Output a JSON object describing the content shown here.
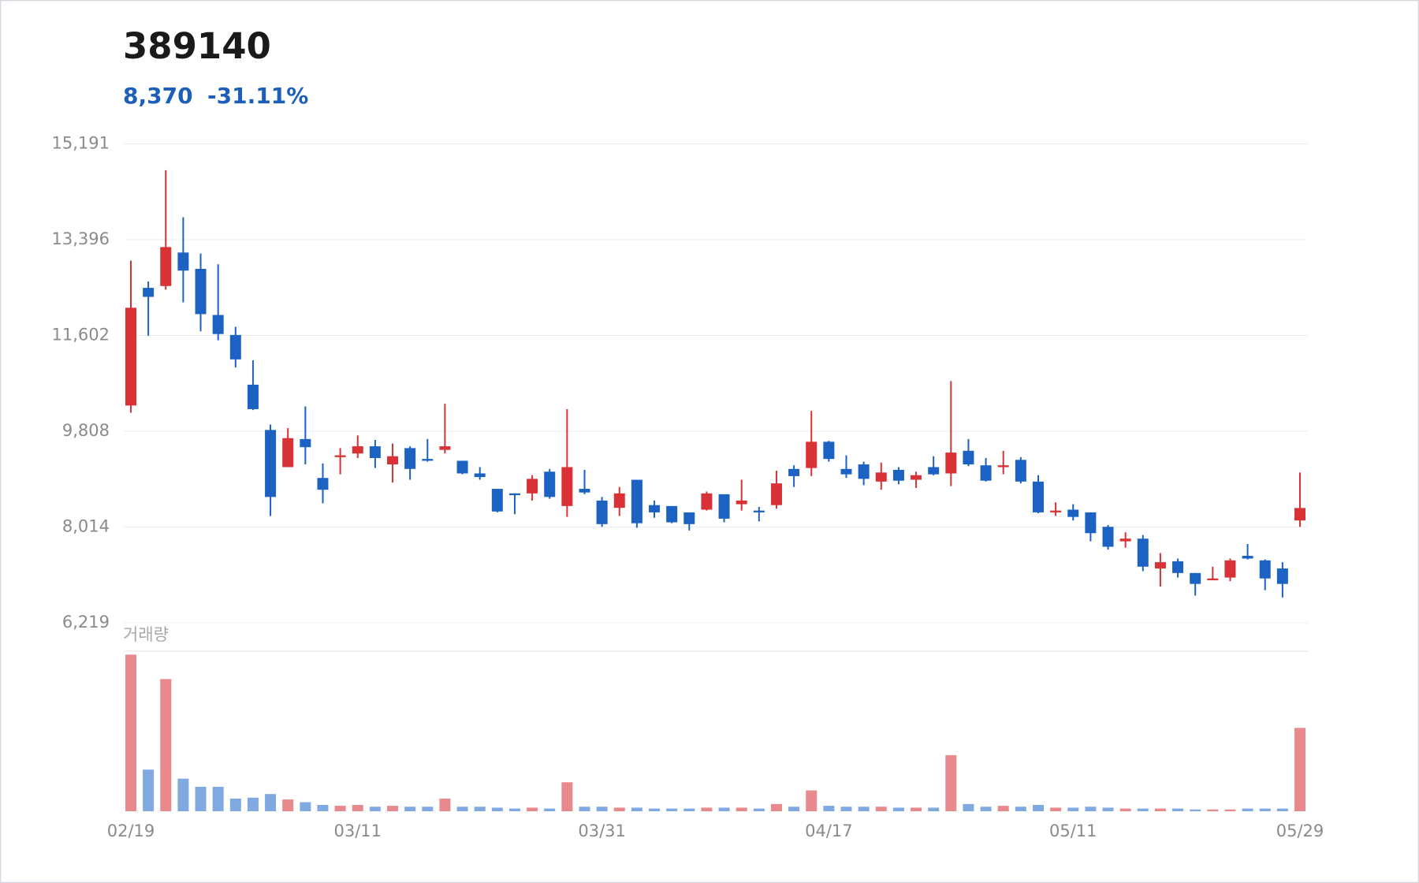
{
  "chart_data": {
    "type": "candlestick",
    "title": "389140",
    "price": "8,370",
    "change": "-31.11%",
    "volume_label": "거래량",
    "categories": [
      "02/19",
      null,
      null,
      null,
      null,
      null,
      null,
      null,
      null,
      null,
      null,
      null,
      null,
      "03/11",
      null,
      null,
      null,
      null,
      null,
      null,
      null,
      null,
      null,
      null,
      null,
      null,
      null,
      "03/31",
      null,
      null,
      null,
      null,
      null,
      null,
      null,
      null,
      null,
      null,
      null,
      null,
      "04/17",
      null,
      null,
      null,
      null,
      null,
      null,
      null,
      null,
      null,
      null,
      null,
      null,
      null,
      "05/11",
      null,
      null,
      null,
      null,
      null,
      null,
      null,
      null,
      null,
      null,
      null,
      null,
      "05/29"
    ],
    "open": [
      10290,
      12494,
      12528,
      13156,
      12850,
      11986,
      11612,
      10680,
      9832,
      9136,
      9662,
      8933,
      9323,
      9391,
      9526,
      9187,
      9492,
      9289,
      9459,
      9255,
      9018,
      8729,
      8644,
      8644,
      9051,
      8407,
      8729,
      8509,
      8373,
      8899,
      8424,
      8407,
      8288,
      8339,
      8628,
      8441,
      8322,
      8424,
      9102,
      9119,
      9611,
      9102,
      9187,
      8865,
      9085,
      8899,
      9136,
      9018,
      9442,
      9170,
      9136,
      9272,
      8865,
      8288,
      8339,
      8288,
      8017,
      7746,
      7796,
      7237,
      7372,
      7152,
      7016,
      7067,
      7474,
      7389,
      7237,
      8136
    ],
    "high": [
      13003,
      12613,
      14699,
      13817,
      13139,
      12935,
      11765,
      11138,
      9933,
      9866,
      10273,
      9204,
      9492,
      9730,
      9645,
      9577,
      9526,
      9662,
      10323,
      9255,
      9136,
      8729,
      8644,
      8984,
      9102,
      10222,
      9085,
      8577,
      8763,
      8899,
      8509,
      8407,
      8288,
      8678,
      8628,
      8899,
      8390,
      9068,
      9170,
      10188,
      9628,
      9357,
      9238,
      9221,
      9136,
      9051,
      9340,
      10747,
      9662,
      9306,
      9442,
      9323,
      8984,
      8475,
      8441,
      8288,
      8051,
      7915,
      7864,
      7525,
      7423,
      7152,
      7271,
      7423,
      7695,
      7406,
      7355,
      9035
    ],
    "low": [
      10154,
      11596,
      12460,
      12223,
      11680,
      11511,
      11002,
      10205,
      8220,
      9136,
      9187,
      8458,
      9001,
      9306,
      9119,
      8848,
      8899,
      9238,
      9391,
      9001,
      8899,
      8288,
      8254,
      8509,
      8543,
      8203,
      8628,
      8017,
      8220,
      8000,
      8187,
      8085,
      7949,
      8322,
      8102,
      8322,
      8119,
      8356,
      8763,
      8967,
      9238,
      8933,
      8797,
      8712,
      8814,
      8746,
      8984,
      8780,
      9153,
      8865,
      9001,
      8831,
      8271,
      8220,
      8136,
      7746,
      7593,
      7627,
      7186,
      6898,
      7067,
      6728,
      7016,
      6999,
      7406,
      6830,
      6694,
      8017
    ],
    "close": [
      12121,
      12325,
      13258,
      12817,
      12002,
      11629,
      11154,
      10222,
      8577,
      9679,
      9509,
      8712,
      9357,
      9526,
      9306,
      9340,
      9102,
      9255,
      9526,
      9018,
      8950,
      8305,
      8611,
      8916,
      8577,
      9136,
      8661,
      8068,
      8644,
      8085,
      8288,
      8102,
      8068,
      8644,
      8170,
      8509,
      8288,
      8831,
      8967,
      9611,
      9289,
      9001,
      8916,
      9035,
      8882,
      8984,
      9001,
      9408,
      9187,
      8882,
      9170,
      8865,
      8288,
      8322,
      8203,
      7898,
      7644,
      7796,
      7271,
      7355,
      7152,
      6948,
      7050,
      7389,
      7423,
      7050,
      6948,
      8370
    ],
    "volume": [
      173,
      46,
      146,
      36,
      27,
      27,
      14,
      15,
      19,
      13,
      10,
      7,
      6,
      7,
      5,
      6,
      5,
      5,
      14,
      5,
      5,
      4,
      3,
      4,
      3,
      32,
      5,
      5,
      4,
      4,
      3,
      3,
      3,
      4,
      4,
      4,
      3,
      8,
      5,
      23,
      6,
      5,
      5,
      5,
      4,
      4,
      4,
      62,
      8,
      5,
      6,
      5,
      7,
      4,
      4,
      5,
      4,
      3,
      3,
      3,
      3,
      2,
      2,
      2,
      3,
      3,
      3,
      92
    ],
    "ylim": [
      6219,
      15191
    ],
    "yticks": [
      {
        "value": 15191,
        "label": "15,191"
      },
      {
        "value": 13396,
        "label": "13,396"
      },
      {
        "value": 11602,
        "label": "11,602"
      },
      {
        "value": 9808,
        "label": "9,808"
      },
      {
        "value": 8014,
        "label": "8,014"
      },
      {
        "value": 6219,
        "label": "6,219"
      }
    ],
    "volume_ylim": [
      0,
      175
    ],
    "grid": true,
    "up_color": "#d83236",
    "down_color": "#1b62c2",
    "volume_up_color": "#e8898d",
    "volume_down_color": "#80a9e1",
    "header_color": "#1b5fb8"
  }
}
